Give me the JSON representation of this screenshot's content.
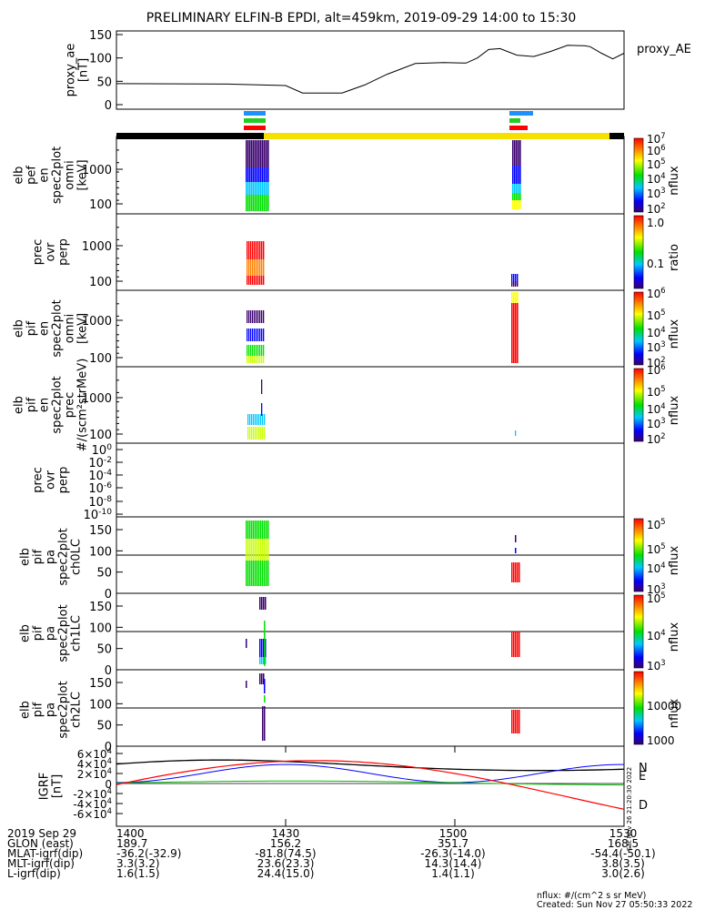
{
  "title": "PRELIMINARY ELFIN-B EPDI, alt=459km, 2019-09-29 14:00 to 15:30",
  "chart_data": [
    {
      "panel": "proxy_ae",
      "type": "line",
      "ylabel": "proxy_ae\n[nT]",
      "legend": "proxy_AE",
      "ylim": [
        0,
        150
      ],
      "yticks": [
        "0",
        "50",
        "100",
        "150"
      ],
      "x_minutes": [
        0,
        20,
        30,
        33,
        40,
        44,
        48,
        53,
        58,
        62,
        64,
        66,
        68,
        71,
        74,
        77,
        80,
        83,
        84,
        86,
        88,
        90
      ],
      "values": [
        45,
        44,
        41,
        25,
        25,
        42,
        65,
        88,
        90,
        89,
        100,
        118,
        120,
        106,
        103,
        114,
        127,
        126,
        124,
        110,
        98,
        110
      ]
    },
    {
      "panel": "elb pef en spec2plot omni",
      "type": "heatmap",
      "ylabel": "elb\npef\nen\nspec2plot\nomni\n[keV]",
      "yticks": [
        "100",
        "1000"
      ],
      "colorbar_label": "nflux",
      "colorbar_ticks": [
        "10^2",
        "10^3",
        "10^4",
        "10^5",
        "10^6",
        "10^7"
      ]
    },
    {
      "panel": "prec ovr perp",
      "type": "heatmap",
      "ylabel": "prec\novr\nperp",
      "yticks": [
        "100",
        "1000"
      ],
      "colorbar_label": "ratio",
      "colorbar_ticks": [
        "0.1",
        "1.0"
      ]
    },
    {
      "panel": "elb pif en spec2plot omni",
      "type": "heatmap",
      "ylabel": "elb\npif\nen\nspec2plot\nomni\n[keV]",
      "yticks": [
        "100",
        "1000"
      ],
      "colorbar_label": "nflux",
      "colorbar_ticks": [
        "10^2",
        "10^3",
        "10^4",
        "10^5",
        "10^6"
      ]
    },
    {
      "panel": "elb pif en spec2plot prec",
      "type": "heatmap",
      "ylabel": "elb\npif\nen\nspec2plot\nprec\n#/(scm²strMeV)",
      "yticks": [
        "100",
        "1000"
      ],
      "colorbar_label": "nflux",
      "colorbar_ticks": [
        "10^2",
        "10^3",
        "10^4",
        "10^5",
        "10^6"
      ]
    },
    {
      "panel": "prec ovr perp (2)",
      "type": "line",
      "ylabel": "prec\novr\nperp",
      "yticks": [
        "10^-10",
        "10^-8",
        "10^-6",
        "10^-4",
        "10^-2",
        "10^0"
      ]
    },
    {
      "panel": "elb pif pa spec2plot ch0LC",
      "type": "heatmap",
      "ylabel": "elb\npif\npa\nspec2plot\nch0LC",
      "ylim": [
        0,
        180
      ],
      "yticks": [
        "0",
        "50",
        "100",
        "150"
      ],
      "colorbar_label": "nflux",
      "colorbar_ticks": [
        "10^3",
        "10^4",
        "10^5",
        "10^5"
      ]
    },
    {
      "panel": "elb pif pa spec2plot ch1LC",
      "type": "heatmap",
      "ylabel": "elb\npif\npa\nspec2plot\nch1LC",
      "ylim": [
        0,
        180
      ],
      "yticks": [
        "0",
        "50",
        "100",
        "150"
      ],
      "colorbar_label": "nflux",
      "colorbar_ticks": [
        "10^3",
        "10^4",
        "10^5"
      ]
    },
    {
      "panel": "elb pif pa spec2plot ch2LC",
      "type": "heatmap",
      "ylabel": "elb\npif\npa\nspec2plot\nch2LC",
      "ylim": [
        0,
        180
      ],
      "yticks": [
        "0",
        "50",
        "100",
        "150"
      ],
      "colorbar_label": "nflux",
      "colorbar_ticks": [
        "1000",
        "10000"
      ]
    },
    {
      "panel": "IGRF",
      "type": "line",
      "ylabel": "IGRF\n[nT]",
      "yticks": [
        "-6×10^4",
        "-4×10^4",
        "-2×10^4",
        "0",
        "2×10^4",
        "4×10^4",
        "6×10^4"
      ],
      "series": [
        {
          "name": "N",
          "color": "#0000ff"
        },
        {
          "name": "E",
          "color": "#00c000"
        },
        {
          "name": "D",
          "color": "#ff0000"
        }
      ]
    }
  ],
  "xaxis": {
    "tick_labels": [
      "1400",
      "1430",
      "1500",
      "1530"
    ],
    "rows": [
      {
        "label": "2019 Sep 29",
        "values": [
          "1400",
          "1430",
          "1500",
          "1530"
        ]
      },
      {
        "label": "GLON (east)",
        "values": [
          "189.7",
          "156.2",
          "351.7",
          "168.5"
        ]
      },
      {
        "label": "MLAT-igrf(dip)",
        "values": [
          "-36.2(-32.9)",
          "-81.8(74.5)",
          "-26.3(-14.0)",
          "-54.4(-50.1)"
        ]
      },
      {
        "label": "MLT-igrf(dip)",
        "values": [
          "3.3(3.2)",
          "23.6(23.3)",
          "14.3(14.4)",
          "3.8(3.5)"
        ]
      },
      {
        "label": "L-igrf(dip)",
        "values": [
          "1.6(1.5)",
          "24.4(15.0)",
          "1.4(1.1)",
          "3.0(2.6)"
        ]
      }
    ]
  },
  "side_stamp": "Sat Nov 26 21:20:30 2022",
  "footer": {
    "line1": "nflux: #/(cm^2 s sr MeV)",
    "line2": "Created: Sun Nov 27 05:50:33 2022"
  },
  "colors": {
    "bar_black": "#000000",
    "bar_yellow": "#f5e000",
    "blue": "#1e90ff",
    "green": "#22cc22",
    "red": "#ff0000"
  }
}
